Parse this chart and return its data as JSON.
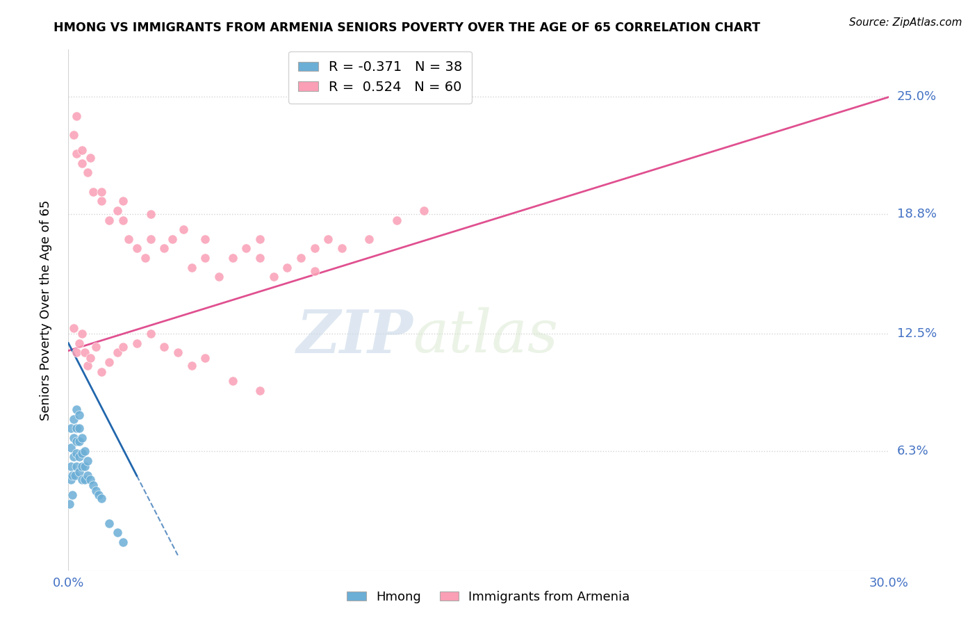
{
  "title": "HMONG VS IMMIGRANTS FROM ARMENIA SENIORS POVERTY OVER THE AGE OF 65 CORRELATION CHART",
  "source": "Source: ZipAtlas.com",
  "ylabel_label": "Seniors Poverty Over the Age of 65",
  "legend1_label": "R = -0.371   N = 38",
  "legend2_label": "R =  0.524   N = 60",
  "legend_group1": "Hmong",
  "legend_group2": "Immigrants from Armenia",
  "color_hmong": "#6baed6",
  "color_armenia": "#fa9fb5",
  "line_hmong": "#2166ac",
  "line_armenia": "#e05090",
  "watermark_zip": "ZIP",
  "watermark_atlas": "atlas",
  "xmin": 0.0,
  "xmax": 0.3,
  "ymin": 0.0,
  "ymax": 0.275,
  "y_tick_vals": [
    0.063,
    0.125,
    0.188,
    0.25
  ],
  "y_tick_labels": [
    "6.3%",
    "12.5%",
    "18.8%",
    "25.0%"
  ],
  "hmong_x": [
    0.0005,
    0.0008,
    0.001,
    0.001,
    0.001,
    0.0015,
    0.0015,
    0.002,
    0.002,
    0.002,
    0.0025,
    0.003,
    0.003,
    0.003,
    0.003,
    0.003,
    0.004,
    0.004,
    0.004,
    0.004,
    0.004,
    0.005,
    0.005,
    0.005,
    0.005,
    0.006,
    0.006,
    0.006,
    0.007,
    0.007,
    0.008,
    0.009,
    0.01,
    0.011,
    0.012,
    0.015,
    0.018,
    0.02
  ],
  "hmong_y": [
    0.035,
    0.048,
    0.055,
    0.065,
    0.075,
    0.04,
    0.05,
    0.06,
    0.07,
    0.08,
    0.05,
    0.055,
    0.062,
    0.068,
    0.075,
    0.085,
    0.052,
    0.06,
    0.068,
    0.075,
    0.082,
    0.048,
    0.055,
    0.062,
    0.07,
    0.048,
    0.055,
    0.063,
    0.05,
    0.058,
    0.048,
    0.045,
    0.042,
    0.04,
    0.038,
    0.025,
    0.02,
    0.015
  ],
  "armenia_x": [
    0.003,
    0.005,
    0.007,
    0.009,
    0.012,
    0.015,
    0.018,
    0.02,
    0.022,
    0.025,
    0.028,
    0.03,
    0.035,
    0.038,
    0.042,
    0.045,
    0.05,
    0.055,
    0.06,
    0.065,
    0.07,
    0.075,
    0.08,
    0.085,
    0.09,
    0.095,
    0.1,
    0.11,
    0.12,
    0.13,
    0.002,
    0.003,
    0.004,
    0.005,
    0.006,
    0.007,
    0.008,
    0.01,
    0.012,
    0.015,
    0.018,
    0.02,
    0.025,
    0.03,
    0.035,
    0.04,
    0.045,
    0.05,
    0.06,
    0.07,
    0.002,
    0.003,
    0.005,
    0.008,
    0.012,
    0.02,
    0.03,
    0.05,
    0.07,
    0.09
  ],
  "armenia_y": [
    0.22,
    0.215,
    0.21,
    0.2,
    0.195,
    0.185,
    0.19,
    0.185,
    0.175,
    0.17,
    0.165,
    0.175,
    0.17,
    0.175,
    0.18,
    0.16,
    0.165,
    0.155,
    0.165,
    0.17,
    0.175,
    0.155,
    0.16,
    0.165,
    0.17,
    0.175,
    0.17,
    0.175,
    0.185,
    0.19,
    0.128,
    0.115,
    0.12,
    0.125,
    0.115,
    0.108,
    0.112,
    0.118,
    0.105,
    0.11,
    0.115,
    0.118,
    0.12,
    0.125,
    0.118,
    0.115,
    0.108,
    0.112,
    0.1,
    0.095,
    0.23,
    0.24,
    0.222,
    0.218,
    0.2,
    0.195,
    0.188,
    0.175,
    0.165,
    0.158
  ],
  "armenia_line_x0": 0.0,
  "armenia_line_y0": 0.116,
  "armenia_line_x1": 0.3,
  "armenia_line_y1": 0.25,
  "hmong_line_x0": 0.0,
  "hmong_line_y0": 0.12,
  "hmong_line_x1": 0.025,
  "hmong_line_y1": 0.05
}
